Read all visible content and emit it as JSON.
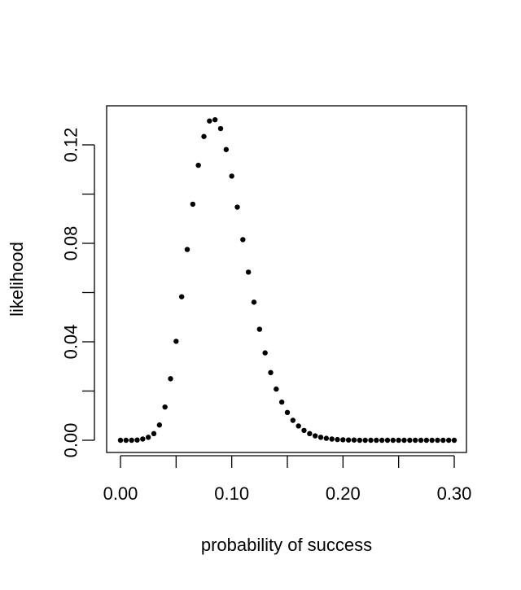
{
  "chart_data": {
    "type": "scatter",
    "title": "",
    "xlabel": "probability of success",
    "ylabel": "likelihood",
    "xlim": [
      0.0,
      0.3
    ],
    "ylim": [
      0.0,
      0.13
    ],
    "x_ticks": [
      0.0,
      0.1,
      0.2,
      0.3
    ],
    "x_tick_labels": [
      "0.00",
      "0.10",
      "0.20",
      "0.30"
    ],
    "x_minor_ticks": [
      0.05,
      0.15,
      0.25
    ],
    "y_ticks": [
      0.0,
      0.04,
      0.08,
      0.12
    ],
    "y_tick_labels": [
      "0.00",
      "0.04",
      "0.08",
      "0.12"
    ],
    "y_minor_ticks": [
      0.02,
      0.06,
      0.1
    ],
    "grid": false,
    "point_color": "#000000",
    "series": [
      {
        "x": [
          0.0,
          0.005,
          0.01,
          0.015,
          0.02,
          0.025,
          0.03,
          0.035,
          0.04,
          0.045,
          0.05,
          0.055,
          0.06,
          0.065,
          0.07,
          0.075,
          0.08,
          0.085,
          0.09,
          0.095,
          0.1,
          0.105,
          0.11,
          0.115,
          0.12,
          0.125,
          0.13,
          0.135,
          0.14,
          0.145,
          0.15,
          0.155,
          0.16,
          0.165,
          0.17,
          0.175,
          0.18,
          0.185,
          0.19,
          0.195,
          0.2,
          0.205,
          0.21,
          0.215,
          0.22,
          0.225,
          0.23,
          0.235,
          0.24,
          0.245,
          0.25,
          0.255,
          0.26,
          0.265,
          0.27,
          0.275,
          0.28,
          0.285,
          0.29,
          0.295,
          0.3
        ],
        "values": [
          0.0,
          0.0,
          0.0,
          0.0001,
          0.0005,
          0.0012,
          0.0027,
          0.0062,
          0.0135,
          0.025,
          0.0402,
          0.0583,
          0.0775,
          0.0959,
          0.1117,
          0.1234,
          0.1297,
          0.1302,
          0.1266,
          0.1181,
          0.1073,
          0.0947,
          0.0815,
          0.0683,
          0.0561,
          0.0451,
          0.0355,
          0.0275,
          0.0208,
          0.0155,
          0.0113,
          0.0081,
          0.0058,
          0.004,
          0.0027,
          0.0018,
          0.0012,
          0.0008,
          0.0005,
          0.0003,
          0.0002,
          0.0001,
          0.0001,
          0.0,
          0.0,
          0.0,
          0.0,
          0.0,
          0.0,
          0.0,
          0.0,
          0.0,
          0.0,
          0.0,
          0.0,
          0.0,
          0.0,
          0.0,
          0.0,
          0.0,
          0.0
        ]
      }
    ]
  }
}
